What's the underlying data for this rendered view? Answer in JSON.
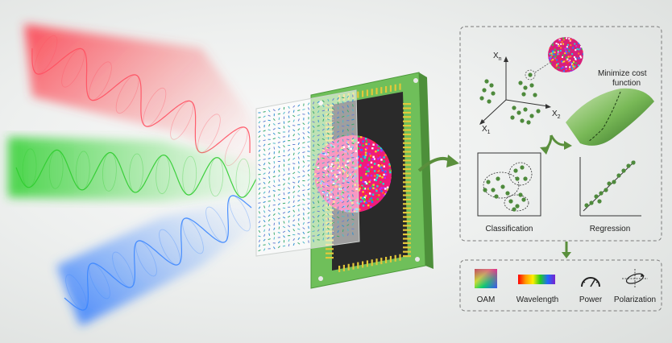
{
  "axes": {
    "x_n": "X",
    "x_n_sub": "n",
    "x_2": "X",
    "x_2_sub": "2",
    "x_1": "X",
    "x_1_sub": "1"
  },
  "annotation": {
    "line1": "Minimize cost",
    "line2": "function"
  },
  "panels": {
    "classification": "Classification",
    "regression": "Regression"
  },
  "outputs": [
    {
      "label": "OAM",
      "icon": "oam-color-square-icon"
    },
    {
      "label": "Wavelength",
      "icon": "wavelength-spectrum-icon"
    },
    {
      "label": "Power",
      "icon": "power-gauge-icon"
    },
    {
      "label": "Polarization",
      "icon": "polarization-ellipse-icon"
    }
  ],
  "colors": {
    "beam_red": "#ff3b4a",
    "beam_green": "#3fd23f",
    "beam_blue": "#2f7fff",
    "chip_board": "#6fbf5a",
    "cluster_dot": "#4e8a3c",
    "flow_arrow": "#5a8f3c"
  }
}
